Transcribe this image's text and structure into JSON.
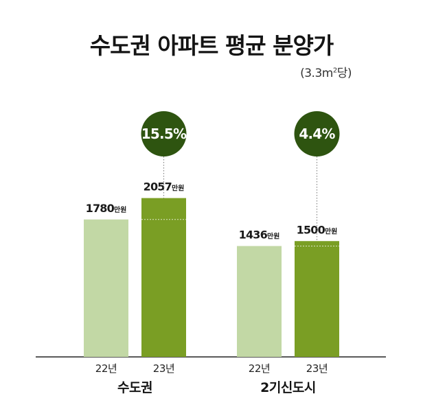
{
  "title": "수도권 아파트 평균 분양가",
  "subtitle": {
    "prefix": "(3.3m",
    "sup": "2",
    "suffix": "당)"
  },
  "colors": {
    "bar_22": "#c2d8a5",
    "bar_23": "#7a9e24",
    "badge": "#2e5410",
    "axis": "#222222"
  },
  "chart_data": {
    "type": "bar",
    "title": "수도권 아파트 평균 분양가",
    "unit": "만원",
    "ylim": [
      0,
      2400
    ],
    "groups": [
      {
        "name": "수도권",
        "change_label": "15.5%",
        "bars": [
          {
            "year": "22년",
            "value": 1780
          },
          {
            "year": "23년",
            "value": 2057
          }
        ]
      },
      {
        "name": "2기신도시",
        "change_label": "4.4%",
        "bars": [
          {
            "year": "22년",
            "value": 1436
          },
          {
            "year": "23년",
            "value": 1500
          }
        ]
      }
    ]
  }
}
